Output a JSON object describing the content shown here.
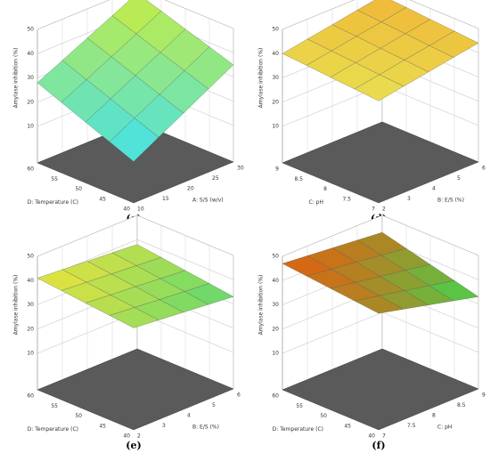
{
  "chart_data": [
    {
      "type": "surface",
      "label": "(c)",
      "xlabel": "A: S/S (w/v)",
      "ylabel": "D: Temperature (C)",
      "zlabel": "Amylase inhibition (%)",
      "xlim": [
        10,
        30
      ],
      "xticks": [
        10,
        15,
        20,
        25,
        30
      ],
      "ylim": [
        40,
        60
      ],
      "yticks": [
        40,
        45,
        50,
        55,
        60
      ],
      "zlim": [
        10,
        50
      ],
      "zticks": [
        10,
        20,
        30,
        40,
        50
      ],
      "x": [
        10,
        15,
        20,
        25,
        30
      ],
      "y": [
        40,
        45,
        50,
        55,
        60
      ],
      "z": [
        [
          12,
          17.8,
          23.5,
          29.3,
          35
        ],
        [
          16,
          21.6,
          27.1,
          32.7,
          38.3
        ],
        [
          20,
          25.4,
          30.8,
          36.1,
          41.5
        ],
        [
          24,
          29.2,
          34.4,
          39.6,
          44.8
        ],
        [
          28,
          33,
          38,
          43,
          48
        ]
      ],
      "colorscale": [
        "#3fe0f0",
        "#c8ec40"
      ]
    },
    {
      "type": "surface",
      "label": "(d)",
      "xlabel": "B: E/S (%)",
      "ylabel": "C: pH",
      "zlabel": "Amylase inhibition (%)",
      "xlim": [
        2,
        6
      ],
      "xticks": [
        2,
        3,
        4,
        5,
        6
      ],
      "ylim": [
        7,
        9
      ],
      "yticks": [
        7,
        7.5,
        8,
        8.5,
        9
      ],
      "zlim": [
        10,
        50
      ],
      "zticks": [
        10,
        20,
        30,
        40,
        50
      ],
      "x": [
        2,
        3,
        4,
        5,
        6
      ],
      "y": [
        7,
        7.5,
        8,
        8.5,
        9
      ],
      "z": [
        [
          37,
          38.8,
          40.5,
          42.3,
          44
        ],
        [
          37.8,
          39.5,
          41.3,
          43,
          44.8
        ],
        [
          38.5,
          40.3,
          42,
          43.8,
          45.5
        ],
        [
          39.3,
          41,
          42.8,
          44.5,
          46.3
        ],
        [
          40,
          41.8,
          43.5,
          45.3,
          47
        ]
      ],
      "colorscale": [
        "#e8e050",
        "#f0b838"
      ]
    },
    {
      "type": "surface",
      "label": "(e)",
      "xlabel": "B: E/S (%)",
      "ylabel": "D: Temperature (C)",
      "zlabel": "Amylase inhibition (%)",
      "xlim": [
        2,
        6
      ],
      "xticks": [
        2,
        3,
        4,
        5,
        6
      ],
      "ylim": [
        40,
        60
      ],
      "yticks": [
        40,
        45,
        50,
        55,
        60
      ],
      "zlim": [
        10,
        50
      ],
      "zticks": [
        10,
        20,
        30,
        40,
        50
      ],
      "x": [
        2,
        3,
        4,
        5,
        6
      ],
      "y": [
        40,
        45,
        50,
        55,
        60
      ],
      "z": [
        [
          37,
          36,
          35,
          34,
          33
        ],
        [
          38,
          37.1,
          36.1,
          35.2,
          34.3
        ],
        [
          39,
          38.1,
          37.3,
          36.4,
          35.5
        ],
        [
          40,
          39.2,
          38.4,
          37.6,
          36.8
        ],
        [
          41,
          40.3,
          39.5,
          38.8,
          38
        ]
      ],
      "colorscale": [
        "#5cd870",
        "#ece23c"
      ]
    },
    {
      "type": "surface",
      "label": "(f)",
      "xlabel": "C: pH",
      "ylabel": "D: Temperature (C)",
      "zlabel": "Amylase inhibition (%)",
      "xlim": [
        7,
        9
      ],
      "xticks": [
        7,
        7.5,
        8,
        8.5,
        9
      ],
      "ylim": [
        40,
        60
      ],
      "yticks": [
        40,
        45,
        50,
        55,
        60
      ],
      "zlim": [
        10,
        50
      ],
      "zticks": [
        10,
        20,
        30,
        40,
        50
      ],
      "x": [
        7,
        7.5,
        8,
        8.5,
        9
      ],
      "y": [
        40,
        45,
        50,
        55,
        60
      ],
      "z": [
        [
          43,
          40.5,
          38,
          35.5,
          33
        ],
        [
          44,
          41.9,
          39.8,
          37.6,
          35.5
        ],
        [
          45,
          43.3,
          41.5,
          39.8,
          38
        ],
        [
          46,
          44.6,
          43.3,
          41.9,
          40.5
        ],
        [
          47,
          46,
          45,
          44,
          43
        ]
      ],
      "colorscale": [
        "#40d850",
        "#e06010"
      ]
    }
  ]
}
